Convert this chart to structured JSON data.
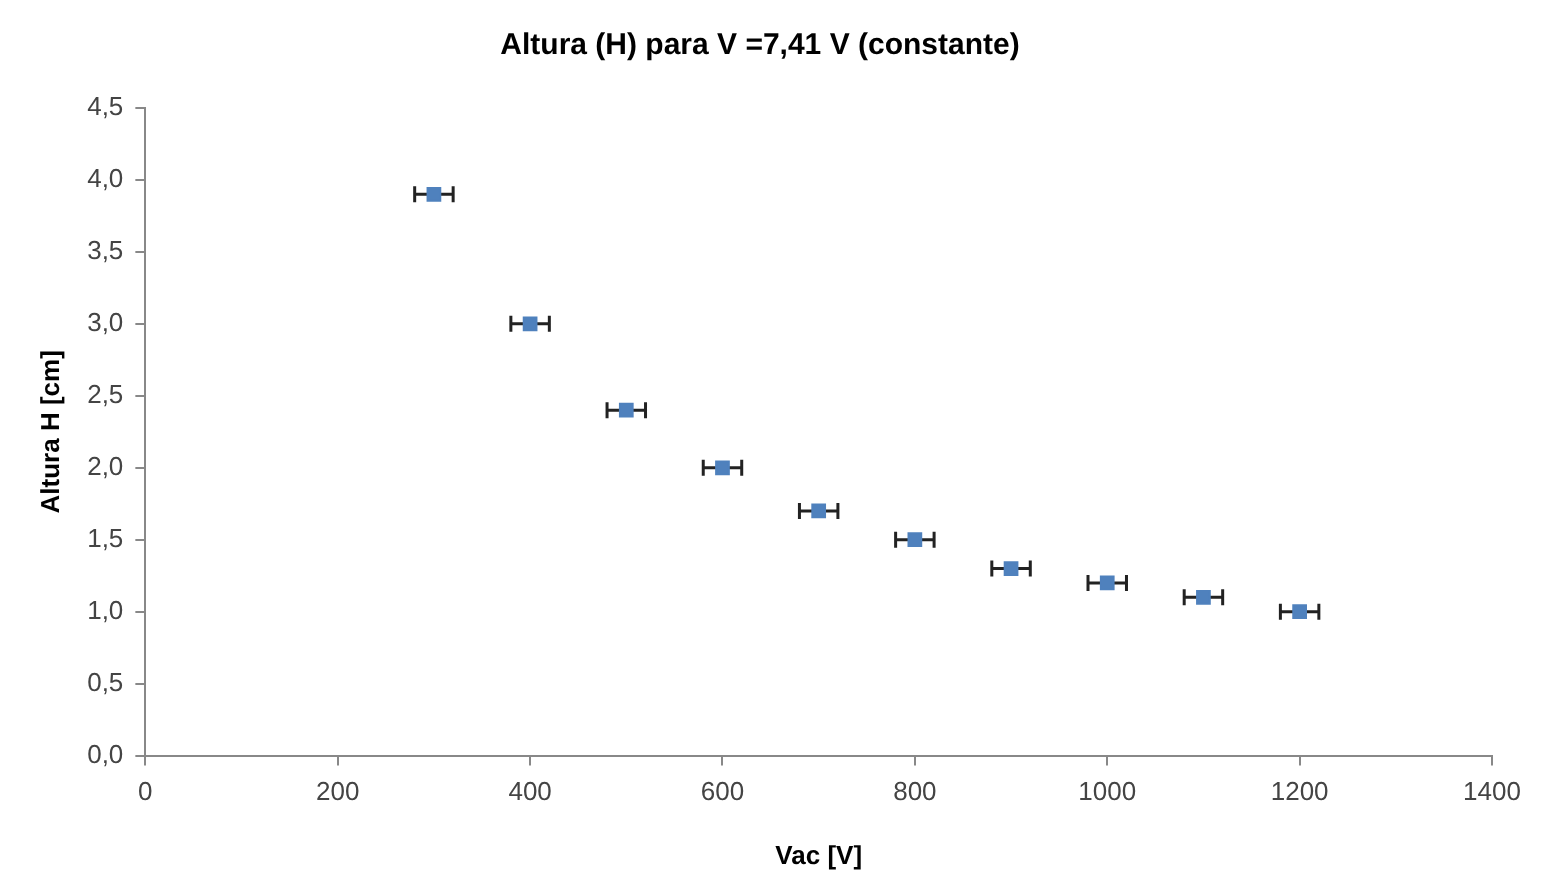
{
  "chart_data": {
    "type": "scatter",
    "title": "Altura (H) para V =7,41 V (constante)",
    "xlabel": "Vac [V]",
    "ylabel": "Altura H [cm]",
    "x": [
      300,
      400,
      500,
      600,
      700,
      800,
      900,
      1000,
      1100,
      1200
    ],
    "series": [
      {
        "color": "#4f81bd",
        "values": [
          3.9,
          3.0,
          2.4,
          2.0,
          1.7,
          1.5,
          1.3,
          1.2,
          1.1,
          1.0
        ],
        "xerrors": [
          20,
          20,
          20,
          20,
          20,
          20,
          20,
          20,
          20,
          20
        ]
      }
    ],
    "xlim": [
      0,
      1400
    ],
    "xticks": [
      0,
      200,
      400,
      600,
      800,
      1000,
      1200,
      1400
    ],
    "ylim": [
      0,
      4.5
    ],
    "yticks": [
      {
        "value": 0,
        "label": "0,0"
      },
      {
        "value": 0.5,
        "label": "0,5"
      },
      {
        "value": 1,
        "label": "1,0"
      },
      {
        "value": 1.5,
        "label": "1,5"
      },
      {
        "value": 2,
        "label": "2,0"
      },
      {
        "value": 2.5,
        "label": "2,5"
      },
      {
        "value": 3,
        "label": "3,0"
      },
      {
        "value": 3.5,
        "label": "3,5"
      },
      {
        "value": 4,
        "label": "4,0"
      },
      {
        "value": 4.5,
        "label": "4,5"
      }
    ],
    "grid": false,
    "legend": false,
    "marker": "square"
  }
}
